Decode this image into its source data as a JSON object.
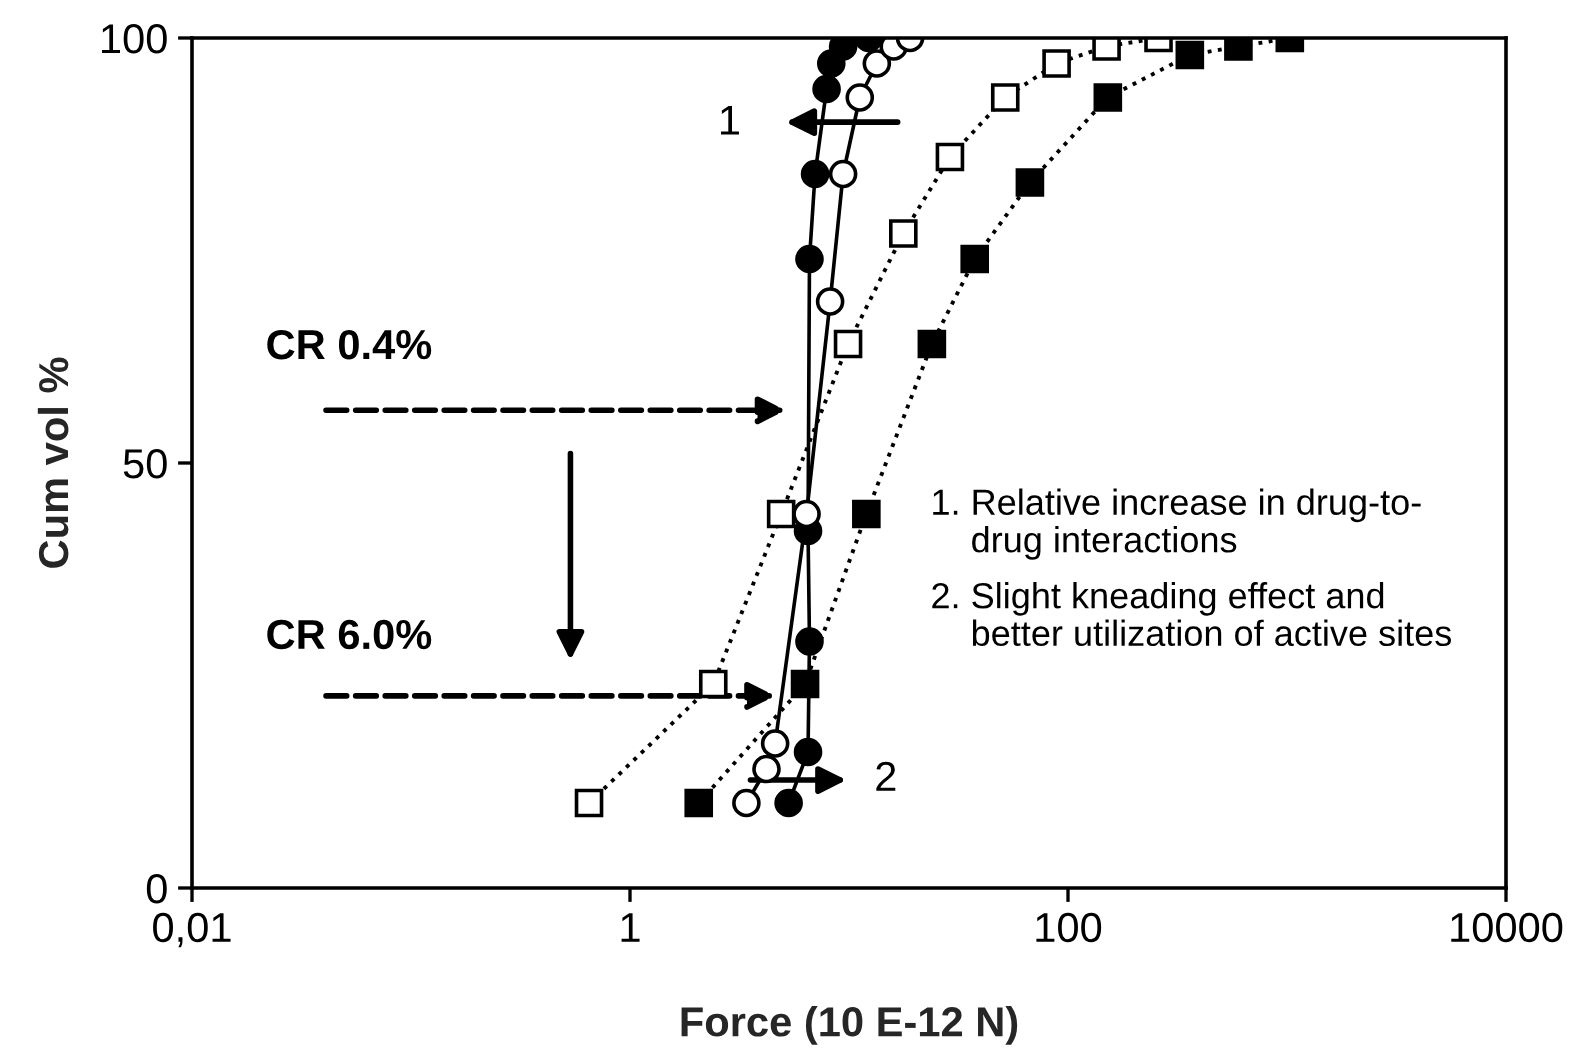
{
  "chart_data": {
    "type": "line",
    "xlabel": "Force (10 E-12 N)",
    "ylabel": "Cum vol %",
    "log": "x",
    "xlim": [
      0.01,
      10000
    ],
    "xticks": [
      {
        "value": 0.01,
        "label": "0,01"
      },
      1,
      100,
      10000
    ],
    "ylim": [
      0,
      100
    ],
    "yticks": [
      0,
      50,
      100
    ],
    "grid": false,
    "legend": false,
    "series": [
      {
        "color": "#000000",
        "marker": "circle",
        "line_style": "solid",
        "x": [
          5.3,
          6.5,
          6.6,
          6.5,
          6.6,
          7.0,
          7.9,
          8.3,
          9.4,
          12.3
        ],
        "values": [
          10,
          16,
          29,
          42,
          74,
          84,
          94,
          97,
          99,
          100
        ]
      },
      {
        "color": "#ffffff",
        "marker": "circle",
        "line_style": "solid",
        "x": [
          3.4,
          4.2,
          4.6,
          6.4,
          8.2,
          9.4,
          11.2,
          13.4,
          16,
          19
        ],
        "values": [
          10,
          14,
          17,
          44,
          69,
          84,
          93,
          97,
          99,
          100
        ]
      },
      {
        "color": "#ffffff",
        "marker": "square",
        "line_style": "dotted",
        "x": [
          0.65,
          2.4,
          4.9,
          9.9,
          17.7,
          28.9,
          51.7,
          88.7,
          150,
          259
        ],
        "values": [
          10,
          24,
          44,
          64,
          77,
          86,
          93,
          97,
          99,
          100
        ]
      },
      {
        "color": "#000000",
        "marker": "square",
        "line_style": "dotted",
        "x": [
          2.06,
          6.3,
          12,
          23.9,
          37.5,
          67,
          152,
          360,
          600,
          1030
        ],
        "values": [
          10,
          24,
          44,
          64,
          74,
          83,
          93,
          98,
          99,
          100
        ]
      }
    ],
    "annotations": [
      "1",
      "2",
      "CR 0.4%",
      "CR 6.0%",
      "1. Relative increase in drug-to-\n    drug interactions",
      "2. Slight kneading effect and\n    better utilization of active sites"
    ]
  }
}
